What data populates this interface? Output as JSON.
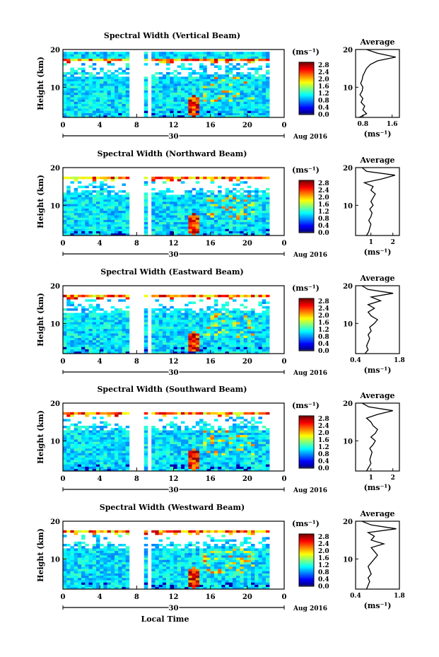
{
  "figure": {
    "xlabel": "Local Time"
  },
  "chart_data": [
    {
      "type": "heatmap",
      "title": "Spectral Width (Vertical Beam)",
      "ylabel": "Height (km)",
      "yticks": [
        "20",
        "10"
      ],
      "xticks": [
        "0",
        "4",
        "8",
        "12",
        "16",
        "20",
        "0"
      ],
      "xlim": [
        0,
        24
      ],
      "ylim": [
        2,
        20
      ],
      "day_label": "30",
      "month_label": "Aug 2016",
      "colorbar": {
        "unit": "(ms⁻¹)",
        "ticks": [
          "2.8",
          "2.4",
          "2.0",
          "1.6",
          "1.2",
          "0.8",
          "0.4",
          "0.0"
        ]
      },
      "avg_profile": {
        "title": "Average",
        "xlabel": "(ms⁻¹)",
        "xticks": [
          "0.8",
          "1.6"
        ],
        "xlim": [
          0.6,
          1.8
        ],
        "yticks": [
          "20",
          "10"
        ],
        "ylim": [
          2,
          20
        ],
        "height": [
          2,
          3,
          4,
          5,
          6,
          7,
          8,
          9,
          10,
          11,
          12,
          13,
          14,
          15,
          16,
          17,
          18,
          19,
          20
        ],
        "value": [
          0.7,
          0.9,
          0.8,
          0.85,
          0.75,
          0.8,
          0.72,
          0.78,
          0.8,
          0.74,
          0.78,
          0.8,
          0.85,
          0.9,
          1.0,
          1.2,
          1.7,
          1.2,
          0.9
        ]
      }
    },
    {
      "type": "heatmap",
      "title": "Spectral Width (Northward Beam)",
      "ylabel": "Height (km)",
      "yticks": [
        "20",
        "10"
      ],
      "xticks": [
        "0",
        "4",
        "8",
        "12",
        "16",
        "20",
        "0"
      ],
      "xlim": [
        0,
        24
      ],
      "ylim": [
        2,
        20
      ],
      "day_label": "30",
      "month_label": "Aug 2016",
      "colorbar": {
        "unit": "(ms⁻¹)",
        "ticks": [
          "2.8",
          "2.4",
          "2.0",
          "1.6",
          "1.2",
          "0.8",
          "0.4",
          "0.0"
        ]
      },
      "avg_profile": {
        "title": "Average",
        "xlabel": "(ms⁻¹)",
        "xticks": [
          "1",
          "2"
        ],
        "xlim": [
          0.3,
          2.3
        ],
        "yticks": [
          "20",
          "10"
        ],
        "ylim": [
          2,
          20
        ],
        "height": [
          2,
          3,
          4,
          5,
          6,
          7,
          8,
          9,
          10,
          11,
          12,
          13,
          14,
          15,
          16,
          17,
          18,
          19,
          20
        ],
        "value": [
          0.8,
          0.9,
          0.95,
          1.0,
          0.9,
          1.0,
          1.05,
          0.95,
          1.1,
          1.0,
          1.1,
          1.2,
          1.0,
          1.1,
          0.7,
          1.5,
          2.1,
          0.8,
          0.6
        ]
      }
    },
    {
      "type": "heatmap",
      "title": "Spectral Width (Eastward Beam)",
      "ylabel": "Height (km)",
      "yticks": [
        "20",
        "10"
      ],
      "xticks": [
        "0",
        "4",
        "8",
        "12",
        "16",
        "20",
        "0"
      ],
      "xlim": [
        0,
        24
      ],
      "ylim": [
        2,
        20
      ],
      "day_label": "30",
      "month_label": "Aug 2016",
      "colorbar": {
        "unit": "(ms⁻¹)",
        "ticks": [
          "2.8",
          "2.4",
          "2.0",
          "1.6",
          "1.2",
          "0.8",
          "0.4",
          "0.0"
        ]
      },
      "avg_profile": {
        "title": "Average",
        "xlabel": "(ms⁻¹)",
        "xticks": [
          "0.4",
          "1.8"
        ],
        "xlim": [
          0.4,
          1.8
        ],
        "yticks": [
          "20",
          "10"
        ],
        "ylim": [
          2,
          20
        ],
        "height": [
          2,
          3,
          4,
          5,
          6,
          7,
          8,
          9,
          10,
          11,
          12,
          13,
          14,
          15,
          16,
          17,
          18,
          19,
          20
        ],
        "value": [
          0.7,
          0.8,
          0.75,
          0.8,
          0.85,
          0.8,
          0.9,
          0.85,
          1.0,
          1.1,
          0.9,
          0.8,
          1.0,
          0.8,
          1.2,
          0.9,
          1.6,
          0.8,
          0.6
        ]
      }
    },
    {
      "type": "heatmap",
      "title": "Spectral Width (Southward Beam)",
      "ylabel": "Height (km)",
      "yticks": [
        "20",
        "10"
      ],
      "xticks": [
        "0",
        "4",
        "8",
        "12",
        "16",
        "20",
        "0"
      ],
      "xlim": [
        0,
        24
      ],
      "ylim": [
        2,
        20
      ],
      "day_label": "30",
      "month_label": "Aug 2016",
      "colorbar": {
        "unit": "(ms⁻¹)",
        "ticks": [
          "2.8",
          "2.4",
          "2.0",
          "1.6",
          "1.2",
          "0.8",
          "0.4",
          "0.0"
        ]
      },
      "avg_profile": {
        "title": "Average",
        "xlabel": "(ms⁻¹)",
        "xticks": [
          "1",
          "2"
        ],
        "xlim": [
          0.3,
          2.3
        ],
        "yticks": [
          "20",
          "10"
        ],
        "ylim": [
          2,
          20
        ],
        "height": [
          2,
          3,
          4,
          5,
          6,
          7,
          8,
          9,
          10,
          11,
          12,
          13,
          14,
          15,
          16,
          17,
          18,
          19,
          20
        ],
        "value": [
          0.8,
          0.9,
          1.0,
          0.95,
          1.0,
          1.05,
          0.95,
          1.1,
          1.2,
          1.0,
          1.2,
          1.3,
          1.1,
          1.0,
          0.8,
          1.3,
          2.0,
          0.9,
          0.6
        ]
      }
    },
    {
      "type": "heatmap",
      "title": "Spectral Width (Westward Beam)",
      "ylabel": "Height (km)",
      "yticks": [
        "20",
        "10"
      ],
      "xticks": [
        "0",
        "4",
        "8",
        "12",
        "16",
        "20",
        "0"
      ],
      "xlim": [
        0,
        24
      ],
      "ylim": [
        2,
        20
      ],
      "day_label": "30",
      "month_label": "Aug 2016",
      "colorbar": {
        "unit": "(ms⁻¹)",
        "ticks": [
          "2.8",
          "2.4",
          "2.0",
          "1.6",
          "1.2",
          "0.8",
          "0.4",
          "0.0"
        ]
      },
      "avg_profile": {
        "title": "Average",
        "xlabel": "(ms⁻¹)",
        "xticks": [
          "0.4",
          "1.8"
        ],
        "xlim": [
          0.4,
          1.8
        ],
        "yticks": [
          "20",
          "10"
        ],
        "ylim": [
          2,
          20
        ],
        "height": [
          2,
          3,
          4,
          5,
          6,
          7,
          8,
          9,
          10,
          11,
          12,
          13,
          14,
          15,
          16,
          17,
          18,
          19,
          20
        ],
        "value": [
          0.75,
          0.8,
          0.85,
          0.8,
          0.9,
          0.85,
          0.8,
          0.9,
          1.0,
          1.1,
          1.0,
          0.9,
          1.3,
          0.9,
          1.0,
          0.8,
          1.7,
          0.9,
          0.6
        ]
      }
    }
  ]
}
